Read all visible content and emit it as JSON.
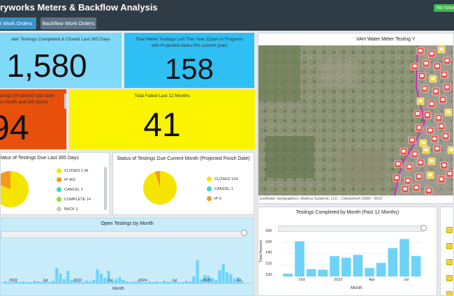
{
  "header": {
    "title": "ryworks Meters & Backflow Analysis",
    "status_badge": "No Issue"
  },
  "tabs": [
    {
      "label": "er Work Orders"
    },
    {
      "label": "Backflow Work Orders"
    }
  ],
  "kpis": {
    "completed_closed": {
      "caption": "ater Testings Completed & Closed Last 365 Days",
      "value": "1,580"
    },
    "left_this_year": {
      "caption": "Total Meter Testings Left This Year (Open In Progress with Projected dates this current year)",
      "value": "158"
    },
    "open_this_month": {
      "caption1": "stings (Projected start date",
      "caption2": "is month and still Open)",
      "value": "94"
    },
    "failed": {
      "caption": "Total Failed Last 12 Months",
      "value": "41"
    }
  },
  "pie1": {
    "title": "tatus of Testings Due Last 365 Days",
    "legend": [
      {
        "label": "CLOSED 1.6k",
        "color": "#f5e400"
      },
      {
        "label": "IP 463",
        "color": "#f59a1b"
      },
      {
        "label": "CANCEL 2",
        "color": "#2fe0c0"
      },
      {
        "label": "COMPLETE 14",
        "color": "#8fdc39"
      },
      {
        "label": "BACK 1",
        "color": "#c8c8c8"
      }
    ]
  },
  "pie2": {
    "title": "Status of Testings Due Current Month (Projected Finish Date)",
    "legend": [
      {
        "label": "CLOSED 124",
        "color": "#f5e400"
      },
      {
        "label": "CANCEL 1",
        "color": "#2fe0c0"
      },
      {
        "label": "IP 9",
        "color": "#f59a1b"
      }
    ]
  },
  "map": {
    "title": "VAH Water Meter Testing Y",
    "attribution": "Earthstar Geographics | Azteca Systems, LLC - Cityworks® 2009 - 2022"
  },
  "chart_data": [
    {
      "type": "bar",
      "title": "Open Testings by Month",
      "xlabel": "Month",
      "x_ticks": [
        "2022",
        "Jul",
        "2023",
        "Jul",
        "2024",
        "Jul",
        "2025",
        "Jul"
      ],
      "color": "#6fd3f7"
    },
    {
      "type": "bar",
      "title": "Testings Completed by Month (Past 12 Months)",
      "xlabel": "Month",
      "ylabel": "Total Amount",
      "ylim": [
        100,
        180
      ],
      "y_ticks": [
        "180",
        "160",
        "140",
        "120",
        "100"
      ],
      "x_ticks": [
        "Oct",
        "2022",
        "Apr",
        "Jul"
      ],
      "values": [
        105,
        162,
        113,
        112,
        136,
        133,
        138,
        115,
        124,
        150,
        166,
        136
      ],
      "color": "#6fd3f7"
    }
  ]
}
